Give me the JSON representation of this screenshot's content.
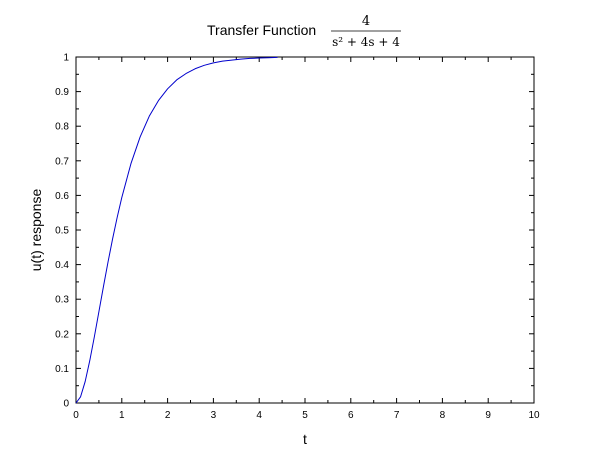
{
  "chart_data": {
    "type": "line",
    "title_prefix": "Transfer Function",
    "title_formula": {
      "numerator": "4",
      "denominator": "s² + 4s + 4"
    },
    "xlabel": "t",
    "ylabel": "u(t) response",
    "xlim": [
      0,
      10
    ],
    "ylim": [
      0,
      1
    ],
    "x_ticks": [
      "0",
      "1",
      "2",
      "3",
      "4",
      "5",
      "6",
      "7",
      "8",
      "9",
      "10"
    ],
    "y_ticks": [
      "0",
      "0.1",
      "0.2",
      "0.3",
      "0.4",
      "0.5",
      "0.6",
      "0.7",
      "0.8",
      "0.9",
      "1"
    ],
    "grid": false,
    "legend": "none",
    "series": [
      {
        "color": "#0000cc",
        "x": [
          0,
          0.1,
          0.2,
          0.3,
          0.4,
          0.5,
          0.6,
          0.7,
          0.8,
          0.9,
          1.0,
          1.2,
          1.4,
          1.6,
          1.8,
          2.0,
          2.2,
          2.4,
          2.6,
          2.8,
          3.0,
          3.2,
          3.4,
          3.6,
          3.8,
          4.0,
          4.2,
          4.4
        ],
        "y": [
          0,
          0.018,
          0.062,
          0.122,
          0.191,
          0.264,
          0.337,
          0.408,
          0.475,
          0.537,
          0.594,
          0.692,
          0.769,
          0.829,
          0.874,
          0.908,
          0.934,
          0.952,
          0.966,
          0.976,
          0.983,
          0.988,
          0.991,
          0.994,
          0.996,
          0.997,
          0.998,
          0.999
        ]
      }
    ]
  }
}
